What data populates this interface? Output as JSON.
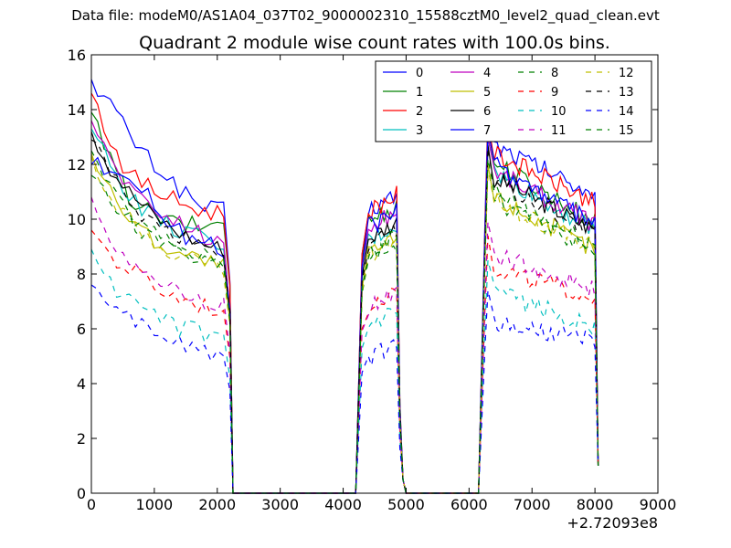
{
  "header": {
    "suptitle": "Data file: modeM0/AS1A04_037T02_9000002310_15588cztM0_level2_quad_clean.evt"
  },
  "chart_data": {
    "type": "line",
    "title": "Quadrant 2 module wise count rates with 100.0s bins.",
    "xlabel": "",
    "ylabel": "",
    "x_offset_label": "+2.72093e8",
    "xlim": [
      0,
      9000
    ],
    "ylim": [
      0,
      16
    ],
    "xticks": [
      0,
      1000,
      2000,
      3000,
      4000,
      5000,
      6000,
      7000,
      8000,
      9000
    ],
    "yticks": [
      0,
      2,
      4,
      6,
      8,
      10,
      12,
      14,
      16
    ],
    "xtick_labels": [
      "0",
      "1000",
      "2000",
      "3000",
      "4000",
      "5000",
      "6000",
      "7000",
      "8000",
      "9000"
    ],
    "ytick_labels": [
      "0",
      "2",
      "4",
      "6",
      "8",
      "10",
      "12",
      "14",
      "16"
    ],
    "legend_position": "top-right",
    "legend_columns": 4,
    "series": [
      {
        "name": "0",
        "color": "#0000ff",
        "dash": "solid",
        "v": [
          15.1,
          14.2,
          13.1,
          12.2,
          11.6,
          10.9,
          10.4,
          10.3
        ],
        "peak2": 10.9,
        "peak3": 13.9,
        "end3": 10.9
      },
      {
        "name": "1",
        "color": "#008000",
        "dash": "solid",
        "v": [
          13.9,
          12.1,
          10.8,
          10.3,
          9.9,
          9.8,
          9.7,
          10.1
        ],
        "peak2": 10.5,
        "peak3": 13.3,
        "end3": 9.9
      },
      {
        "name": "2",
        "color": "#ff0000",
        "dash": "solid",
        "v": [
          14.6,
          12.9,
          11.6,
          11.2,
          10.8,
          10.5,
          10.3,
          10.2
        ],
        "peak2": 10.9,
        "peak3": 13.6,
        "end3": 10.6
      },
      {
        "name": "3",
        "color": "#00bfbf",
        "dash": "solid",
        "v": [
          13.3,
          12.0,
          10.9,
          10.2,
          9.8,
          9.5,
          9.2,
          8.9
        ],
        "peak2": 9.8,
        "peak3": 12.9,
        "end3": 9.6
      },
      {
        "name": "4",
        "color": "#bf00bf",
        "dash": "solid",
        "v": [
          13.6,
          12.2,
          11.2,
          10.4,
          10.1,
          9.8,
          9.4,
          9.0
        ],
        "peak2": 10.3,
        "peak3": 13.0,
        "end3": 9.8
      },
      {
        "name": "5",
        "color": "#bfbf00",
        "dash": "solid",
        "v": [
          12.4,
          11.0,
          10.1,
          9.4,
          9.0,
          8.7,
          8.5,
          8.3
        ],
        "peak2": 9.3,
        "peak3": 12.0,
        "end3": 8.9
      },
      {
        "name": "6",
        "color": "#000000",
        "dash": "solid",
        "v": [
          13.2,
          11.9,
          11.0,
          10.3,
          9.8,
          9.4,
          9.1,
          8.9
        ],
        "peak2": 9.9,
        "peak3": 12.7,
        "end3": 9.6
      },
      {
        "name": "7",
        "color": "#0000ff",
        "dash": "solid",
        "v": [
          12.0,
          11.9,
          11.6,
          10.9,
          9.9,
          9.4,
          9.1,
          8.8
        ],
        "peak2": 10.3,
        "peak3": 13.2,
        "end3": 9.8
      },
      {
        "name": "8",
        "color": "#008000",
        "dash": "dashed",
        "v": [
          11.6,
          10.6,
          10.0,
          9.4,
          9.0,
          8.8,
          8.5,
          8.3
        ],
        "peak2": 9.1,
        "peak3": 11.9,
        "end3": 8.9
      },
      {
        "name": "9",
        "color": "#ff0000",
        "dash": "dashed",
        "v": [
          9.6,
          8.6,
          8.1,
          7.7,
          7.2,
          7.0,
          6.8,
          6.6
        ],
        "peak2": 7.5,
        "peak3": 9.4,
        "end3": 7.1
      },
      {
        "name": "10",
        "color": "#00bfbf",
        "dash": "dashed",
        "v": [
          8.9,
          7.6,
          7.0,
          6.5,
          6.2,
          6.0,
          5.8,
          5.6
        ],
        "peak2": 6.6,
        "peak3": 8.5,
        "end3": 6.1
      },
      {
        "name": "11",
        "color": "#bf00bf",
        "dash": "dashed",
        "v": [
          10.8,
          9.4,
          8.4,
          7.9,
          7.5,
          7.2,
          6.9,
          6.8
        ],
        "peak2": 7.4,
        "peak3": 9.9,
        "end3": 7.4
      },
      {
        "name": "12",
        "color": "#bfbf00",
        "dash": "dashed",
        "v": [
          12.3,
          10.9,
          10.0,
          9.3,
          8.9,
          8.6,
          8.4,
          8.2
        ],
        "peak2": 9.2,
        "peak3": 11.9,
        "end3": 8.9
      },
      {
        "name": "13",
        "color": "#000000",
        "dash": "dashed",
        "v": [
          12.9,
          11.6,
          10.6,
          10.0,
          9.6,
          9.3,
          9.0,
          8.8
        ],
        "peak2": 9.7,
        "peak3": 12.6,
        "end3": 9.5
      },
      {
        "name": "14",
        "color": "#0000ff",
        "dash": "dashed",
        "v": [
          7.6,
          6.6,
          6.3,
          6.0,
          5.7,
          5.4,
          5.2,
          5.0
        ],
        "peak2": 5.5,
        "peak3": 7.4,
        "end3": 5.6
      },
      {
        "name": "15",
        "color": "#008000",
        "dash": "dashed",
        "v": [
          12.5,
          11.0,
          10.2,
          9.6,
          9.2,
          8.9,
          8.6,
          8.4
        ],
        "peak2": 9.4,
        "peak3": 12.2,
        "end3": 9.1
      }
    ]
  }
}
